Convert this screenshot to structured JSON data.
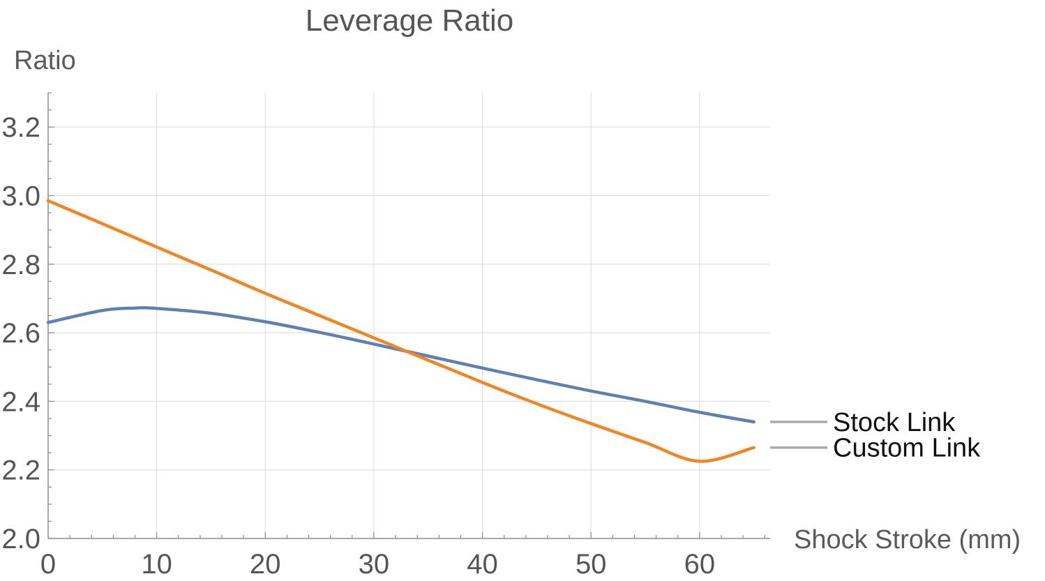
{
  "chart_data": {
    "type": "line",
    "title": "Leverage Ratio",
    "xlabel": "Shock Stroke (mm)",
    "ylabel": "Ratio",
    "xlim": [
      0,
      66.5
    ],
    "ylim": [
      2.0,
      3.3
    ],
    "xticks": [
      0,
      10,
      20,
      30,
      40,
      50,
      60
    ],
    "yticks": [
      2.0,
      2.2,
      2.4,
      2.6,
      2.8,
      3.0,
      3.2
    ],
    "xtick_labels": [
      "0",
      "10",
      "20",
      "30",
      "40",
      "50",
      "60"
    ],
    "ytick_labels": [
      "2.0",
      "2.2",
      "2.4",
      "2.6",
      "2.8",
      "3.0",
      "3.2"
    ],
    "grid": true,
    "legend": "right",
    "series": [
      {
        "name": "Stock Link",
        "color": "#5e81b5",
        "x": [
          0,
          5,
          8,
          10,
          15,
          20,
          25,
          30,
          35,
          40,
          45,
          50,
          55,
          60,
          65
        ],
        "y": [
          2.63,
          2.665,
          2.672,
          2.671,
          2.657,
          2.632,
          2.601,
          2.567,
          2.532,
          2.497,
          2.463,
          2.43,
          2.4,
          2.368,
          2.34
        ]
      },
      {
        "name": "Custom Link",
        "color": "#f28522",
        "x": [
          0,
          5,
          10,
          15,
          20,
          25,
          30,
          35,
          40,
          45,
          50,
          55,
          60,
          65
        ],
        "y": [
          2.985,
          2.918,
          2.85,
          2.783,
          2.715,
          2.65,
          2.585,
          2.52,
          2.455,
          2.393,
          2.335,
          2.28,
          2.225,
          2.265
        ]
      }
    ]
  }
}
